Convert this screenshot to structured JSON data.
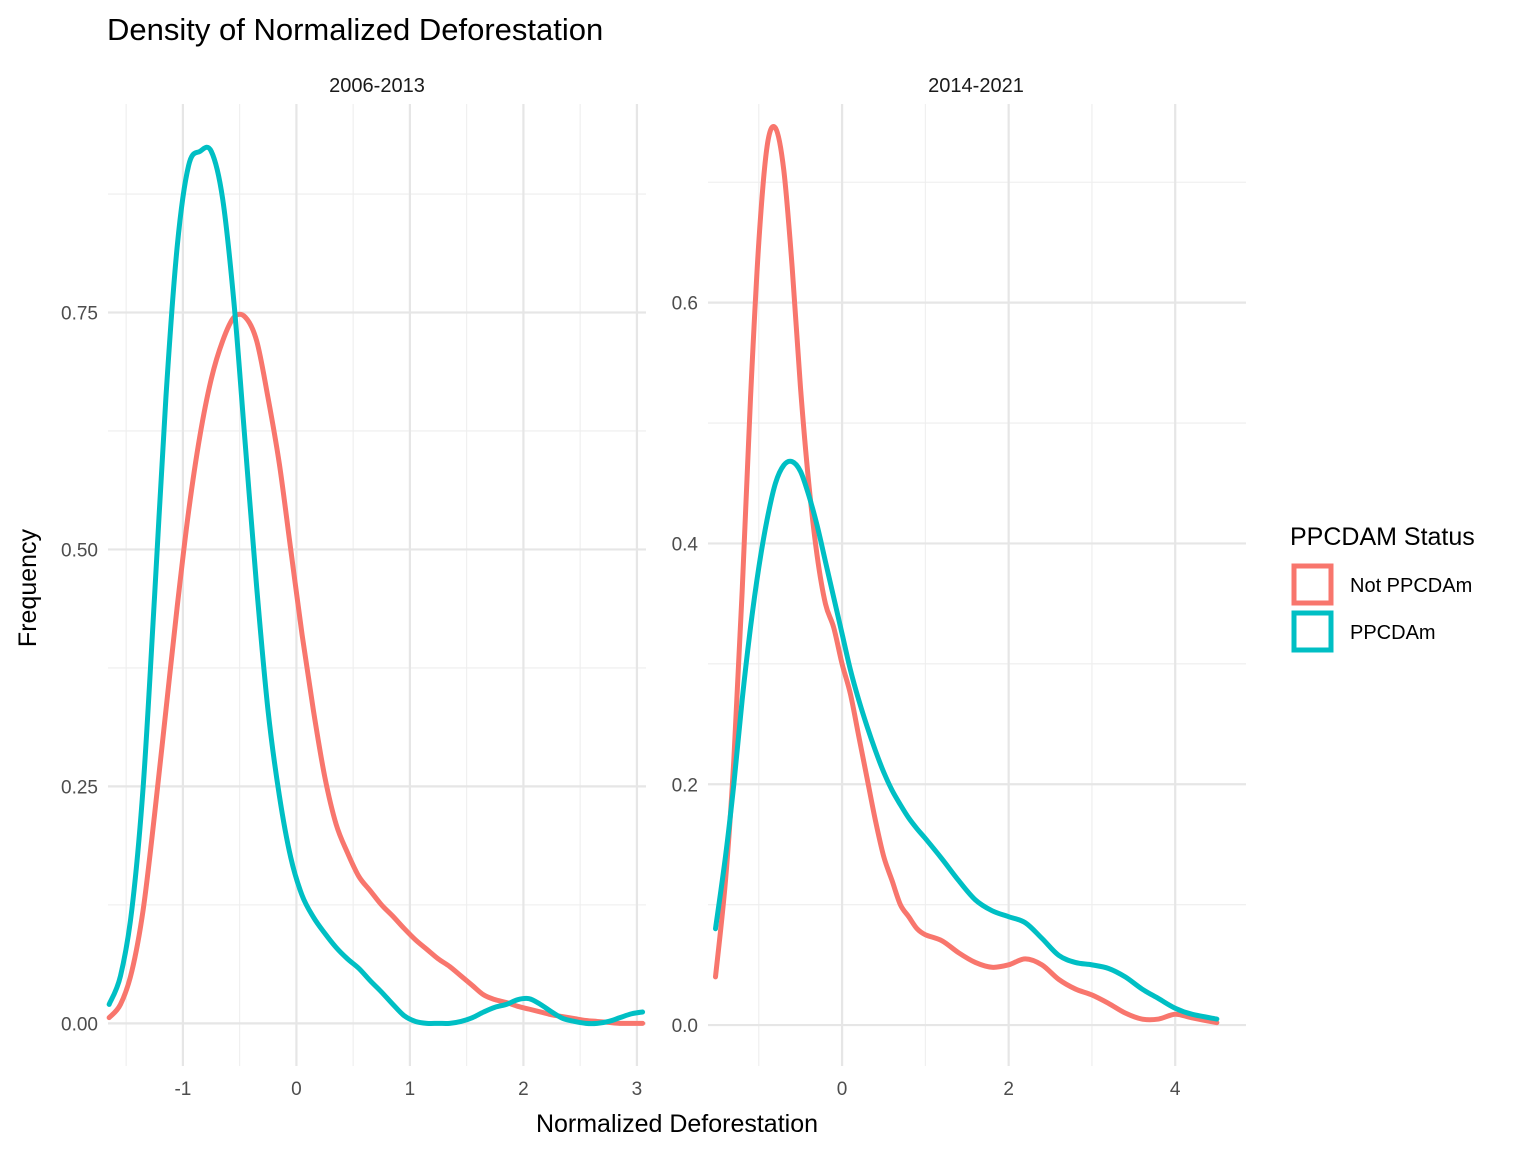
{
  "chart_data": {
    "type": "line",
    "title": "Density of Normalized Deforestation",
    "xlabel": "Normalized Deforestation",
    "ylabel": "Frequency",
    "legend": {
      "title": "PPCDAM Status",
      "placement": "right",
      "entries": [
        {
          "name": "Not PPCDAm",
          "color": "#F8766D"
        },
        {
          "name": "PPCDAm",
          "color": "#00BFC4"
        }
      ]
    },
    "grid": true,
    "panels": [
      {
        "label": "2006-2013",
        "xlim": [
          -1.66,
          3.08
        ],
        "ylim": [
          -0.045,
          0.97
        ],
        "xticks": [
          -1,
          0,
          1,
          2,
          3
        ],
        "xtick_labels": [
          "-1",
          "0",
          "1",
          "2",
          "3"
        ],
        "yticks": [
          0,
          0.25,
          0.5,
          0.75
        ],
        "ytick_labels": [
          "0.00",
          "0.25",
          "0.50",
          "0.75"
        ],
        "series": [
          {
            "name": "Not PPCDAm",
            "x": [
              -1.65,
              -1.55,
              -1.45,
              -1.35,
              -1.25,
              -1.15,
              -1.05,
              -0.95,
              -0.85,
              -0.75,
              -0.65,
              -0.55,
              -0.45,
              -0.35,
              -0.25,
              -0.15,
              -0.05,
              0.05,
              0.15,
              0.25,
              0.35,
              0.45,
              0.55,
              0.65,
              0.75,
              0.85,
              0.95,
              1.05,
              1.15,
              1.25,
              1.35,
              1.45,
              1.55,
              1.65,
              1.75,
              1.85,
              1.95,
              2.05,
              2.15,
              2.25,
              2.35,
              2.45,
              2.55,
              2.65,
              2.75,
              2.85,
              2.95,
              3.05
            ],
            "y": [
              0.006,
              0.02,
              0.055,
              0.12,
              0.22,
              0.33,
              0.44,
              0.54,
              0.62,
              0.68,
              0.72,
              0.745,
              0.745,
              0.72,
              0.66,
              0.59,
              0.5,
              0.41,
              0.33,
              0.26,
              0.21,
              0.18,
              0.155,
              0.14,
              0.125,
              0.113,
              0.1,
              0.088,
              0.078,
              0.068,
              0.06,
              0.05,
              0.04,
              0.03,
              0.025,
              0.022,
              0.018,
              0.015,
              0.012,
              0.009,
              0.007,
              0.005,
              0.003,
              0.002,
              0.001,
              0.0,
              0.0,
              0.0
            ]
          },
          {
            "name": "PPCDAm",
            "x": [
              -1.65,
              -1.55,
              -1.45,
              -1.35,
              -1.25,
              -1.15,
              -1.05,
              -0.95,
              -0.85,
              -0.75,
              -0.65,
              -0.55,
              -0.45,
              -0.35,
              -0.25,
              -0.15,
              -0.05,
              0.05,
              0.15,
              0.25,
              0.35,
              0.45,
              0.55,
              0.65,
              0.75,
              0.85,
              0.95,
              1.05,
              1.15,
              1.25,
              1.35,
              1.45,
              1.55,
              1.65,
              1.75,
              1.85,
              1.95,
              2.05,
              2.15,
              2.25,
              2.35,
              2.45,
              2.55,
              2.65,
              2.75,
              2.85,
              2.95,
              3.05
            ],
            "y": [
              0.02,
              0.05,
              0.12,
              0.25,
              0.45,
              0.66,
              0.82,
              0.905,
              0.92,
              0.92,
              0.87,
              0.76,
              0.61,
              0.46,
              0.33,
              0.24,
              0.175,
              0.135,
              0.112,
              0.095,
              0.08,
              0.068,
              0.058,
              0.045,
              0.033,
              0.02,
              0.008,
              0.002,
              0.0,
              0.0,
              0.0,
              0.002,
              0.006,
              0.012,
              0.017,
              0.02,
              0.025,
              0.026,
              0.02,
              0.012,
              0.005,
              0.002,
              0.0,
              0.0,
              0.002,
              0.006,
              0.01,
              0.012
            ]
          }
        ]
      },
      {
        "label": "2014-2021",
        "xlim": [
          -1.61,
          4.85
        ],
        "ylim": [
          -0.034,
          0.765
        ],
        "xticks": [
          0,
          2,
          4
        ],
        "xtick_labels": [
          "0",
          "2",
          "4"
        ],
        "yticks": [
          0,
          0.2,
          0.4,
          0.6
        ],
        "ytick_labels": [
          "0.0",
          "0.2",
          "0.4",
          "0.6"
        ],
        "series": [
          {
            "name": "Not PPCDAm",
            "x": [
              -1.52,
              -1.4,
              -1.3,
              -1.2,
              -1.1,
              -1.0,
              -0.9,
              -0.8,
              -0.7,
              -0.6,
              -0.5,
              -0.4,
              -0.3,
              -0.2,
              -0.1,
              0.0,
              0.1,
              0.2,
              0.3,
              0.4,
              0.5,
              0.6,
              0.7,
              0.8,
              0.9,
              1.0,
              1.2,
              1.4,
              1.6,
              1.8,
              2.0,
              2.2,
              2.4,
              2.6,
              2.8,
              3.0,
              3.2,
              3.4,
              3.6,
              3.8,
              4.0,
              4.2,
              4.5
            ],
            "y": [
              0.04,
              0.12,
              0.22,
              0.36,
              0.52,
              0.65,
              0.73,
              0.745,
              0.71,
              0.63,
              0.53,
              0.45,
              0.39,
              0.35,
              0.33,
              0.3,
              0.275,
              0.24,
              0.205,
              0.17,
              0.14,
              0.12,
              0.1,
              0.09,
              0.08,
              0.075,
              0.07,
              0.06,
              0.052,
              0.048,
              0.05,
              0.055,
              0.05,
              0.038,
              0.03,
              0.025,
              0.018,
              0.01,
              0.005,
              0.005,
              0.009,
              0.006,
              0.002
            ]
          },
          {
            "name": "PPCDAm",
            "x": [
              -1.52,
              -1.4,
              -1.3,
              -1.2,
              -1.1,
              -1.0,
              -0.9,
              -0.8,
              -0.7,
              -0.6,
              -0.5,
              -0.4,
              -0.3,
              -0.2,
              -0.1,
              0.0,
              0.1,
              0.2,
              0.3,
              0.4,
              0.5,
              0.6,
              0.7,
              0.8,
              0.9,
              1.0,
              1.2,
              1.4,
              1.6,
              1.8,
              2.0,
              2.2,
              2.4,
              2.6,
              2.8,
              3.0,
              3.2,
              3.4,
              3.6,
              3.8,
              4.0,
              4.2,
              4.5
            ],
            "y": [
              0.08,
              0.14,
              0.2,
              0.27,
              0.33,
              0.38,
              0.42,
              0.45,
              0.465,
              0.468,
              0.46,
              0.44,
              0.415,
              0.385,
              0.355,
              0.325,
              0.295,
              0.27,
              0.248,
              0.228,
              0.21,
              0.195,
              0.183,
              0.172,
              0.163,
              0.155,
              0.138,
              0.12,
              0.104,
              0.095,
              0.09,
              0.085,
              0.072,
              0.058,
              0.052,
              0.05,
              0.047,
              0.04,
              0.03,
              0.022,
              0.014,
              0.009,
              0.005
            ]
          }
        ]
      }
    ]
  }
}
